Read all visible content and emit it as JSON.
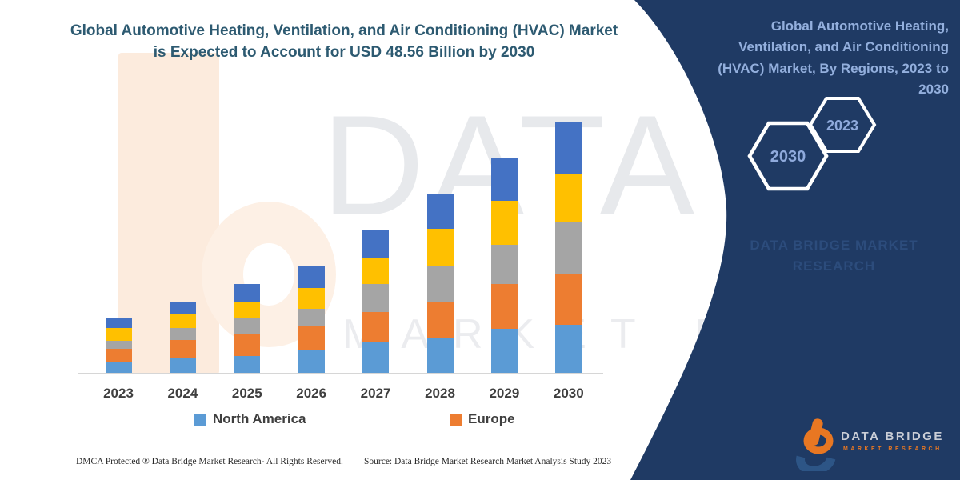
{
  "title": "Global Automotive Heating, Ventilation, and Air Conditioning (HVAC) Market is Expected to Account for USD 48.56 Billion by 2030",
  "side_panel": {
    "heading": "Global Automotive Heating, Ventilation, and Air Conditioning (HVAC) Market, By Regions, 2023 to 2030",
    "hexagon_large_label": "2030",
    "hexagon_small_label": "2023",
    "watermark": "DATA BRIDGE MARKET RESEARCH",
    "background_color": "#1f3a64",
    "text_color": "#93afdd"
  },
  "watermark": {
    "line1": "DATA BRIDGE",
    "line2": "MARKET RESEARCH"
  },
  "legend": [
    {
      "label": "North America",
      "color": "#5B9BD5"
    },
    {
      "label": "Europe",
      "color": "#ED7D31"
    }
  ],
  "footer": {
    "dmca": "DMCA Protected ® Data Bridge Market Research-  All Rights Reserved.",
    "source": "Source: Data Bridge Market Research Market Analysis Study 2023"
  },
  "logo": {
    "name": "DATA BRIDGE",
    "tagline": "MARKET RESEARCH"
  },
  "chart_data": {
    "type": "bar",
    "stacked": true,
    "title": "Global Automotive Heating, Ventilation, and Air Conditioning (HVAC) Market is Expected to Account for USD 48.56 Billion by 2030",
    "categories": [
      "2023",
      "2024",
      "2025",
      "2026",
      "2027",
      "2028",
      "2029",
      "2030"
    ],
    "series": [
      {
        "name": "North America",
        "color": "#5B9BD5",
        "values": [
          2.2,
          3.0,
          3.3,
          4.4,
          6.1,
          6.7,
          8.6,
          9.3
        ]
      },
      {
        "name": "Europe",
        "color": "#ED7D31",
        "values": [
          2.5,
          3.4,
          4.2,
          4.6,
          5.7,
          7.0,
          8.7,
          9.9
        ]
      },
      {
        "name": "Unlabeled series (gray)",
        "color": "#A5A5A5",
        "values": [
          1.5,
          2.3,
          3.1,
          3.5,
          5.5,
          7.1,
          7.6,
          9.9
        ]
      },
      {
        "name": "Unlabeled series (yellow)",
        "color": "#FFC000",
        "values": [
          2.5,
          2.6,
          3.1,
          4.1,
          5.1,
          7.2,
          8.6,
          9.5
        ]
      },
      {
        "name": "Unlabeled series (dark blue)",
        "color": "#4472C4",
        "values": [
          2.0,
          2.4,
          3.6,
          4.2,
          5.5,
          6.8,
          8.2,
          9.96
        ]
      }
    ],
    "totals": [
      10.7,
      13.7,
      17.3,
      20.8,
      27.9,
      34.8,
      41.7,
      48.56
    ],
    "value_unit": "USD Billion",
    "xlabel": "",
    "ylabel": "",
    "yaxis_visible": false,
    "gridlines": false,
    "legend_position": "bottom",
    "legend_visible_series": [
      "North America",
      "Europe"
    ]
  }
}
